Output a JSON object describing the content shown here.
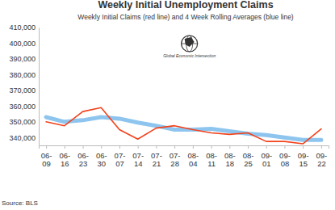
{
  "chart_data": {
    "type": "line",
    "title": "Weekly Initial Unemployment Claims",
    "subtitle": "Weekly Initial Claims (red line) and 4 Week Rolling Averages (blue line)",
    "annotations": [
      "Global Economic Intersection"
    ],
    "source": "Source: BLS",
    "categories": [
      "06-09",
      "06-16",
      "06-23",
      "06-30",
      "07-07",
      "07-14",
      "07-21",
      "07-28",
      "08-04",
      "08-11",
      "08-18",
      "08-25",
      "09-01",
      "09-08",
      "09-15",
      "09-22"
    ],
    "series": [
      {
        "color": "#8ec5ef",
        "values": [
          353000,
          350000,
          351000,
          353000,
          352000,
          349500,
          347500,
          345000,
          345000,
          345500,
          344000,
          342500,
          341500,
          340000,
          338500,
          338500
        ]
      },
      {
        "color": "#f2421b",
        "values": [
          350000,
          347500,
          356500,
          359000,
          345000,
          339000,
          346000,
          347500,
          345000,
          343000,
          342000,
          343000,
          337500,
          337500,
          336000,
          345500
        ]
      }
    ],
    "ylim": [
      335000,
      410000
    ],
    "yticks": [
      {
        "value": 340000,
        "label": "340,000"
      },
      {
        "value": 350000,
        "label": "350,000"
      },
      {
        "value": 360000,
        "label": "360,000"
      },
      {
        "value": 370000,
        "label": "370,000"
      },
      {
        "value": 380000,
        "label": "380,000"
      },
      {
        "value": 390000,
        "label": "390,000"
      },
      {
        "value": 400000,
        "label": "400,000"
      },
      {
        "value": 410000,
        "label": "410,000"
      }
    ],
    "grid": false
  }
}
